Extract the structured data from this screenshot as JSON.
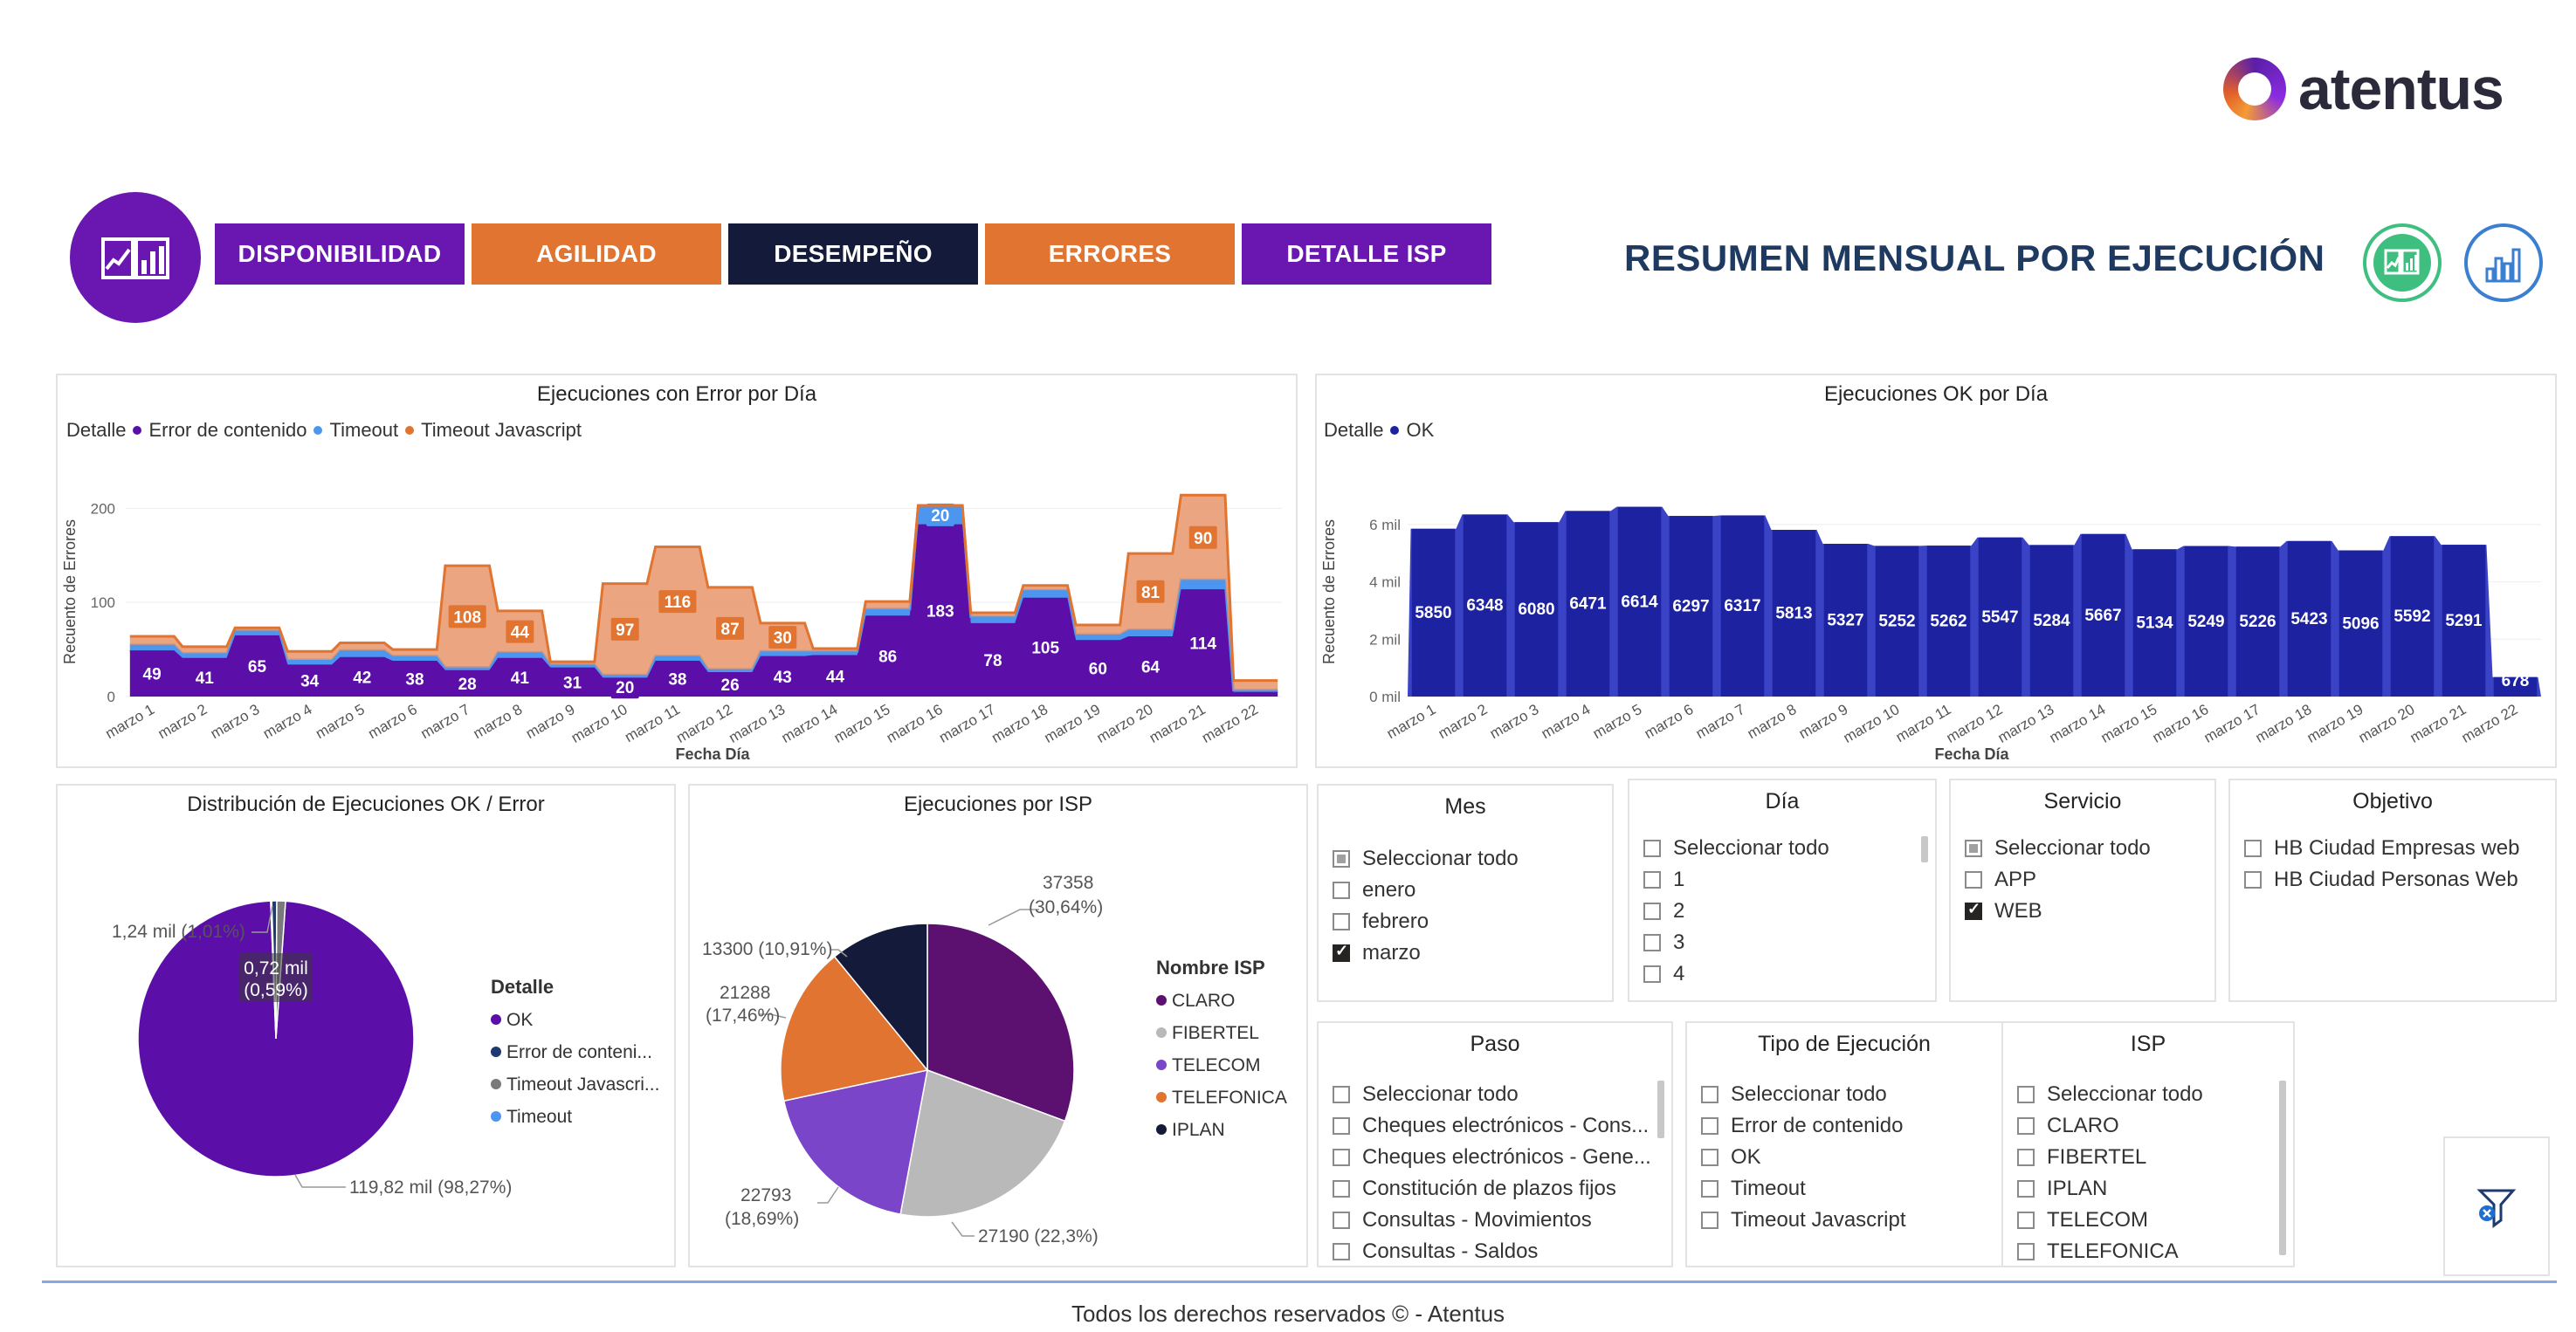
{
  "brand": {
    "name": "atentus"
  },
  "nav": {
    "buttons": [
      {
        "label": "DISPONIBILIDAD",
        "color": "#6a16b0"
      },
      {
        "label": "AGILIDAD",
        "color": "#e07430"
      },
      {
        "label": "DESEMPEÑO",
        "color": "#141b3a"
      },
      {
        "label": "ERRORES",
        "color": "#e07430"
      },
      {
        "label": "DETALLE ISP",
        "color": "#6a16b0"
      }
    ]
  },
  "page_title": "RESUMEN MENSUAL POR EJECUCIÓN",
  "icons": {
    "report": "report-icon",
    "chart_view": "chart-view-icon",
    "bar_view": "bar-view-icon",
    "clear_filters": "clear-filters-icon"
  },
  "chart_data": [
    {
      "id": "errors-by-day",
      "type": "stacked-area",
      "title": "Ejecuciones con Error por Día",
      "legend_title": "Detalle",
      "xlabel": "Fecha Día",
      "ylabel": "Recuento de Errores",
      "ylim": [
        0,
        230
      ],
      "yticks": [
        0,
        100,
        200
      ],
      "categories": [
        "marzo 1",
        "marzo 2",
        "marzo 3",
        "marzo 4",
        "marzo 5",
        "marzo 6",
        "marzo 7",
        "marzo 8",
        "marzo 9",
        "marzo 10",
        "marzo 11",
        "marzo 12",
        "marzo 13",
        "marzo 14",
        "marzo 15",
        "marzo 16",
        "marzo 17",
        "marzo 18",
        "marzo 19",
        "marzo 20",
        "marzo 21",
        "marzo 22"
      ],
      "series": [
        {
          "name": "Error de contenido",
          "color": "#5b0fa8",
          "values": [
            49,
            41,
            65,
            34,
            42,
            38,
            28,
            41,
            31,
            20,
            38,
            26,
            43,
            44,
            86,
            183,
            78,
            105,
            60,
            64,
            114,
            5
          ],
          "labels": [
            "49",
            "41",
            "65",
            "34",
            "42",
            "38",
            "28",
            "41",
            "31",
            "20",
            "38",
            "26",
            "43",
            "44",
            "86",
            "183",
            "78",
            "105",
            "60",
            "64",
            "114",
            ""
          ]
        },
        {
          "name": "Timeout",
          "color": "#4c96f0",
          "values": [
            6,
            5,
            5,
            5,
            7,
            5,
            3,
            6,
            3,
            3,
            5,
            3,
            5,
            4,
            7,
            20,
            7,
            8,
            6,
            7,
            10,
            2
          ],
          "labels": [
            "",
            "",
            "",
            "",
            "",
            "",
            "",
            "",
            "",
            "",
            "",
            "",
            "",
            "",
            "",
            "20",
            "",
            "",
            "",
            "",
            "",
            ""
          ]
        },
        {
          "name": "Timeout Javascript",
          "color": "#e07430",
          "values": [
            9,
            7,
            3,
            9,
            8,
            7,
            108,
            44,
            3,
            97,
            116,
            87,
            30,
            3,
            8,
            0,
            4,
            5,
            10,
            81,
            90,
            10
          ],
          "labels": [
            "",
            "",
            "",
            "",
            "",
            "",
            "108",
            "44",
            "",
            "97",
            "116",
            "87",
            "30",
            "",
            "",
            "",
            "",
            "",
            "",
            "81",
            "90",
            ""
          ]
        }
      ]
    },
    {
      "id": "ok-by-day",
      "type": "bar",
      "title": "Ejecuciones OK por Día",
      "legend_title": "Detalle",
      "xlabel": "Fecha Día",
      "ylabel": "Recuento de Errores",
      "ylim": [
        0,
        7000
      ],
      "yticks": [
        {
          "value": 0,
          "label": "0 mil"
        },
        {
          "value": 2000,
          "label": "2 mil"
        },
        {
          "value": 4000,
          "label": "4 mil"
        },
        {
          "value": 6000,
          "label": "6 mil"
        }
      ],
      "categories": [
        "marzo 1",
        "marzo 2",
        "marzo 3",
        "marzo 4",
        "marzo 5",
        "marzo 6",
        "marzo 7",
        "marzo 8",
        "marzo 9",
        "marzo 10",
        "marzo 11",
        "marzo 12",
        "marzo 13",
        "marzo 14",
        "marzo 15",
        "marzo 16",
        "marzo 17",
        "marzo 18",
        "marzo 19",
        "marzo 20",
        "marzo 21",
        "marzo 22"
      ],
      "series": [
        {
          "name": "OK",
          "color": "#1c22a0",
          "values": [
            5850,
            6348,
            6080,
            6471,
            6614,
            6297,
            6317,
            5813,
            5327,
            5252,
            5262,
            5547,
            5284,
            5667,
            5134,
            5249,
            5226,
            5423,
            5096,
            5592,
            5291,
            678
          ]
        }
      ]
    },
    {
      "id": "ok-error-distribution",
      "type": "pie",
      "title": "Distribución de Ejecuciones OK / Error",
      "legend_title": "Detalle",
      "slices": [
        {
          "name": "OK",
          "value": 98.27,
          "color": "#5b0fa8",
          "label": "119,82 mil (98,27%)"
        },
        {
          "name": "Error de conteni...",
          "value": 0.59,
          "color": "#1f3a70",
          "label": "0,72 mil\n(0,59%)"
        },
        {
          "name": "Timeout Javascri...",
          "value": 1.01,
          "color": "#7a7a7a",
          "label": "1,24 mil (1,01%)"
        },
        {
          "name": "Timeout",
          "value": 0.13,
          "color": "#4c96f0",
          "label": ""
        }
      ]
    },
    {
      "id": "isp-distribution",
      "type": "pie",
      "title": "Ejecuciones por ISP",
      "legend_title": "Nombre ISP",
      "slices": [
        {
          "name": "CLARO",
          "value": 37358,
          "color": "#5c1070",
          "label_a": "37358",
          "label_b": "(30,64%)"
        },
        {
          "name": "FIBERTEL",
          "value": 27190,
          "color": "#b9b9b9",
          "label_a": "27190 (22,3%)",
          "label_b": ""
        },
        {
          "name": "TELECOM",
          "value": 22793,
          "color": "#7a45c8",
          "label_a": "22793",
          "label_b": "(18,69%)"
        },
        {
          "name": "TELEFONICA",
          "value": 21288,
          "color": "#e07430",
          "label_a": "21288",
          "label_b": "(17,46%)"
        },
        {
          "name": "IPLAN",
          "value": 13300,
          "color": "#141b3a",
          "label_a": "13300 (10,91%)",
          "label_b": ""
        }
      ]
    }
  ],
  "slicers": {
    "mes": {
      "title": "Mes",
      "items": [
        {
          "label": "Seleccionar todo",
          "state": "partial"
        },
        {
          "label": "enero",
          "state": ""
        },
        {
          "label": "febrero",
          "state": ""
        },
        {
          "label": "marzo",
          "state": "checked"
        }
      ]
    },
    "dia": {
      "title": "Día",
      "items": [
        {
          "label": "Seleccionar todo",
          "state": ""
        },
        {
          "label": "1",
          "state": ""
        },
        {
          "label": "2",
          "state": ""
        },
        {
          "label": "3",
          "state": ""
        },
        {
          "label": "4",
          "state": ""
        }
      ]
    },
    "servicio": {
      "title": "Servicio",
      "items": [
        {
          "label": "Seleccionar todo",
          "state": "partial"
        },
        {
          "label": "APP",
          "state": ""
        },
        {
          "label": "WEB",
          "state": "checked"
        }
      ]
    },
    "objetivo": {
      "title": "Objetivo",
      "items": [
        {
          "label": "HB Ciudad Empresas web",
          "state": ""
        },
        {
          "label": "HB Ciudad Personas Web",
          "state": ""
        }
      ]
    },
    "paso": {
      "title": "Paso",
      "items": [
        {
          "label": "Seleccionar todo",
          "state": ""
        },
        {
          "label": "Cheques electrónicos - Cons...",
          "state": ""
        },
        {
          "label": "Cheques electrónicos - Gene...",
          "state": ""
        },
        {
          "label": "Constitución de plazos fijos",
          "state": ""
        },
        {
          "label": "Consultas - Movimientos",
          "state": ""
        },
        {
          "label": "Consultas - Saldos",
          "state": ""
        }
      ]
    },
    "tipo": {
      "title": "Tipo de Ejecución",
      "items": [
        {
          "label": "Seleccionar todo",
          "state": ""
        },
        {
          "label": "Error de contenido",
          "state": ""
        },
        {
          "label": "OK",
          "state": ""
        },
        {
          "label": "Timeout",
          "state": ""
        },
        {
          "label": "Timeout Javascript",
          "state": ""
        }
      ]
    },
    "isp": {
      "title": "ISP",
      "items": [
        {
          "label": "Seleccionar todo",
          "state": ""
        },
        {
          "label": "CLARO",
          "state": ""
        },
        {
          "label": "FIBERTEL",
          "state": ""
        },
        {
          "label": "IPLAN",
          "state": ""
        },
        {
          "label": "TELECOM",
          "state": ""
        },
        {
          "label": "TELEFONICA",
          "state": ""
        }
      ]
    }
  },
  "footer": {
    "text": "Todos los derechos reservados ©          - Atentus"
  }
}
